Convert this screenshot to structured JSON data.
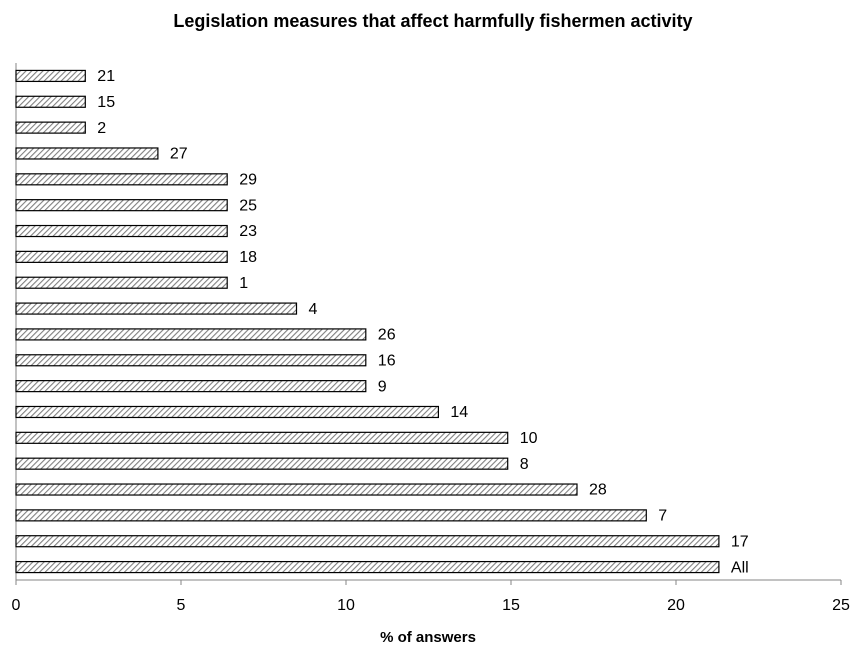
{
  "chart_data": {
    "type": "bar",
    "orientation": "horizontal",
    "title": "Legislation measures that affect harmfully fishermen activity",
    "x_label": "% of answers",
    "categories": [
      "21",
      "15",
      "2",
      "27",
      "29",
      "25",
      "23",
      "18",
      "1",
      "4",
      "26",
      "16",
      "9",
      "14",
      "10",
      "8",
      "28",
      "7",
      "17",
      "All"
    ],
    "values": [
      2.1,
      2.1,
      2.1,
      4.3,
      6.4,
      6.4,
      6.4,
      6.4,
      6.4,
      8.5,
      10.6,
      10.6,
      10.6,
      12.8,
      14.9,
      14.9,
      17.0,
      19.1,
      21.3,
      21.3
    ],
    "color": "#808080",
    "xlim": [
      0,
      25
    ],
    "xticks": [
      0,
      5,
      10,
      15,
      20,
      25
    ],
    "grid": false
  }
}
